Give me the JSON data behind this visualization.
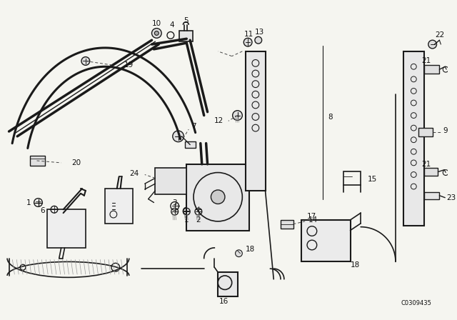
{
  "bg_color": "#f5f5f0",
  "line_color": "#1a1a1a",
  "diagram_code": "C0309435",
  "fig_width": 6.4,
  "fig_height": 4.48,
  "dpi": 100,
  "label_fontsize": 7.5,
  "label_color": "#111111"
}
